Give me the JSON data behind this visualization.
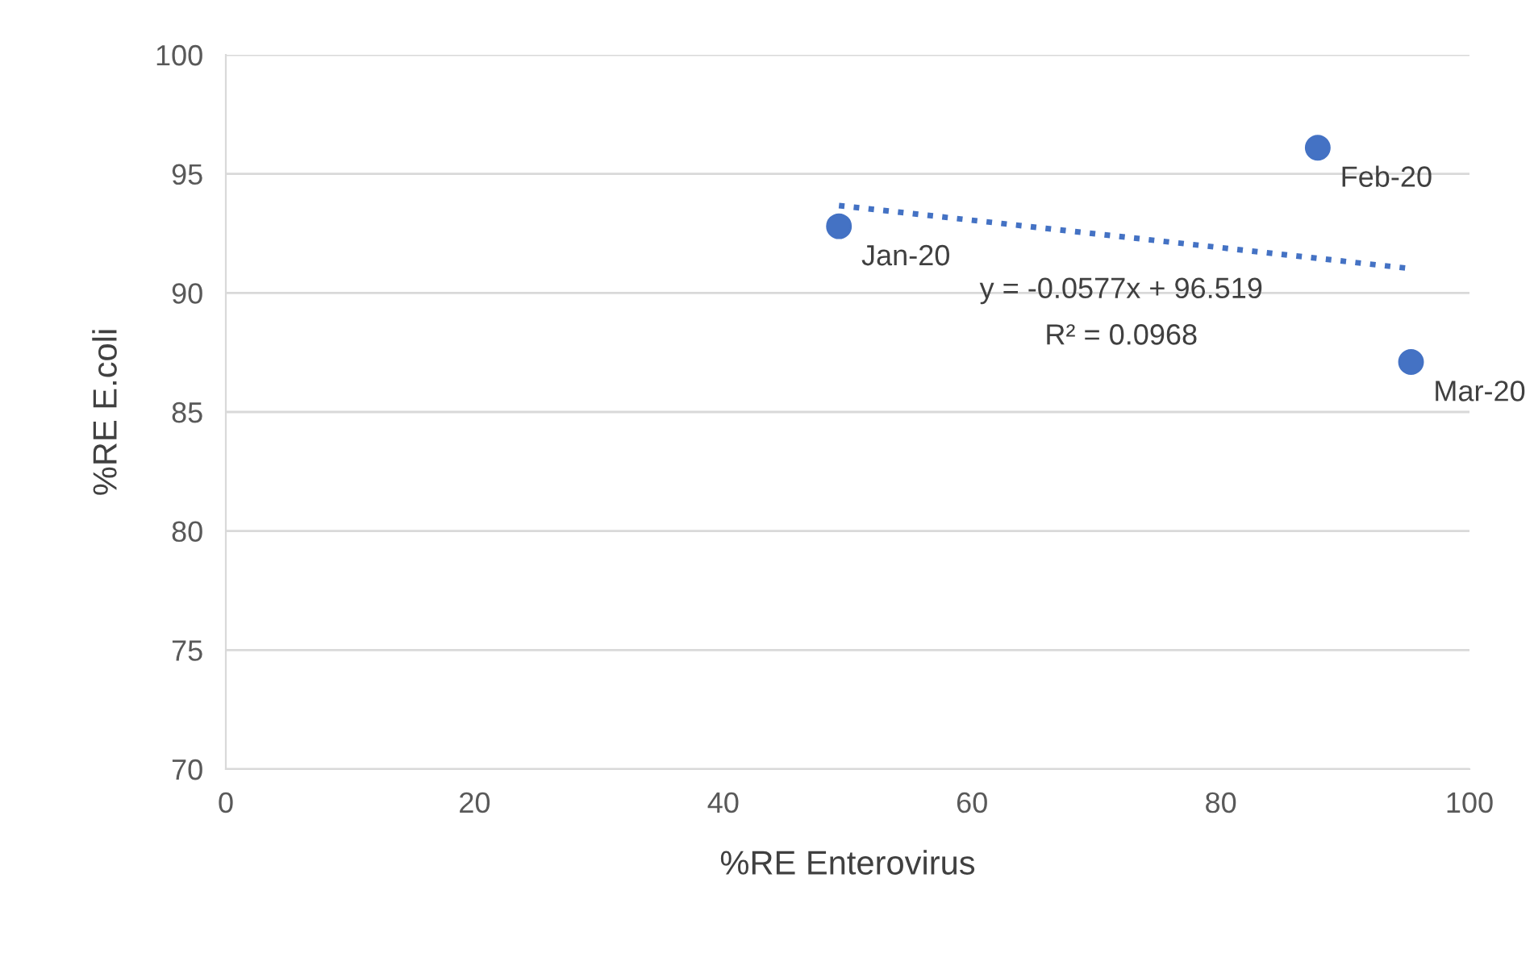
{
  "chart_data": {
    "type": "scatter",
    "xlabel": "%RE Enterovirus",
    "ylabel": "%RE E.coli",
    "xlim": [
      0,
      100
    ],
    "ylim": [
      70,
      100
    ],
    "xticks": [
      0,
      20,
      40,
      60,
      80,
      100
    ],
    "yticks": [
      70,
      75,
      80,
      85,
      90,
      95,
      100
    ],
    "grid": "y",
    "series": [
      {
        "marker": "circle",
        "color": "#4472c4",
        "x": [
          49.3,
          87.8,
          95.3
        ],
        "values": [
          92.8,
          96.1,
          87.1
        ]
      },
      {
        "type": "line",
        "marker": "none",
        "color": "#4472c4",
        "line_style": "dotted",
        "x": [
          49.3,
          95.3
        ],
        "values": [
          93.67,
          91.02
        ]
      }
    ],
    "annotations": [
      {
        "text": "Jan-20",
        "x": 49.3,
        "y": 92.8
      },
      {
        "text": "Feb-20",
        "x": 87.8,
        "y": 96.1
      },
      {
        "text": "Mar-20",
        "x": 95.3,
        "y": 87.1
      },
      "y = -0.0577x + 96.519",
      "R² = 0.0968"
    ]
  }
}
